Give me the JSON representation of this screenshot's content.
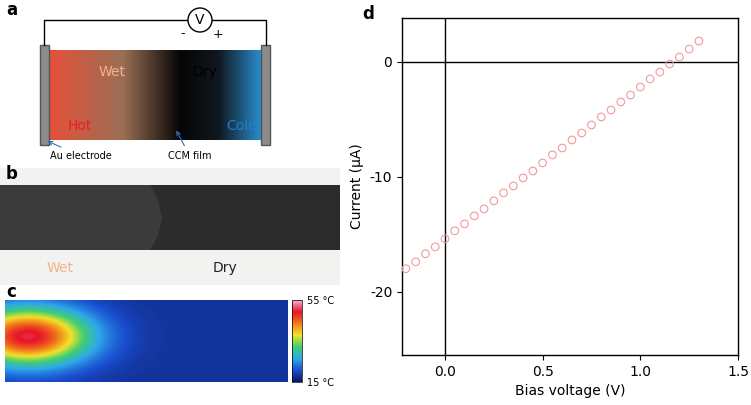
{
  "panel_labels": [
    "a",
    "b",
    "c",
    "d"
  ],
  "schematic": {
    "voltmeter": "V",
    "minus": "-",
    "plus": "+",
    "wet": "Wet",
    "dry": "Dry",
    "hot": "Hot",
    "cold": "Cold",
    "electrode": "Au electrode",
    "film": "CCM film"
  },
  "photo": {
    "wet": "Wet",
    "dry": "Dry"
  },
  "thermal_image": {
    "colorbar_range": [
      15,
      55
    ],
    "colorbar_ticks": [
      {
        "value": 55,
        "label": "55 °C"
      },
      {
        "value": 15,
        "label": "15 °C"
      }
    ]
  },
  "chart_data": {
    "type": "scatter",
    "marker": "o",
    "color": "#f09a9a",
    "xlabel": "Bias voltage (V)",
    "ylabel": "Current (μA)",
    "x": [
      -0.2,
      -0.15,
      -0.1,
      -0.05,
      0.0,
      0.05,
      0.1,
      0.15,
      0.2,
      0.25,
      0.3,
      0.35,
      0.4,
      0.45,
      0.5,
      0.55,
      0.6,
      0.65,
      0.7,
      0.75,
      0.8,
      0.85,
      0.9,
      0.95,
      1.0,
      1.05,
      1.1,
      1.15,
      1.2,
      1.25,
      1.3
    ],
    "values": [
      -18.0,
      -17.4,
      -16.7,
      -16.1,
      -15.4,
      -14.7,
      -14.1,
      -13.4,
      -12.8,
      -12.1,
      -11.4,
      -10.8,
      -10.1,
      -9.5,
      -8.8,
      -8.1,
      -7.5,
      -6.8,
      -6.2,
      -5.5,
      -4.8,
      -4.2,
      -3.5,
      -2.9,
      -2.2,
      -1.5,
      -0.9,
      -0.2,
      0.4,
      1.1,
      1.8
    ],
    "xlim": [
      -0.22,
      1.5
    ],
    "xticks": [
      0.0,
      0.5,
      1.0,
      1.5
    ],
    "ylim": [
      -25.5,
      3.8
    ],
    "yticks": [
      -20,
      -10,
      0
    ],
    "hlines": [
      0
    ],
    "vlines": [
      0
    ]
  }
}
